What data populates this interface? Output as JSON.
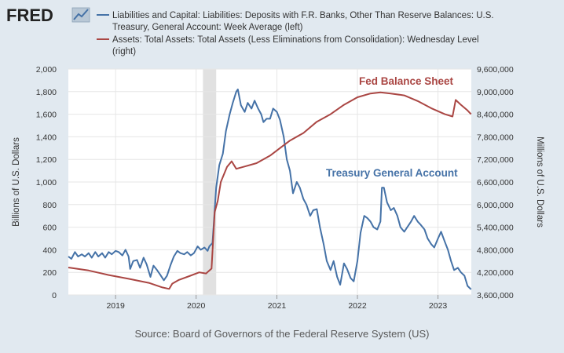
{
  "logo": {
    "text": "FRED"
  },
  "legend": {
    "series1_lines": [
      "Liabilities and Capital: Liabilities: Deposits with F.R. Banks, Other Than Reserve Balances: U.S.",
      "Treasury, General Account: Week Average (left)"
    ],
    "series2_lines": [
      "Assets: Total Assets: Total Assets (Less Eliminations from Consolidation): Wednesday Level",
      "(right)"
    ]
  },
  "source": "Source: Board of Governors of the Federal Reserve System (US)",
  "colors": {
    "tga": "#4572a7",
    "balance": "#aa4643",
    "recession": "#e1e1e1",
    "background": "#e1e9f0"
  },
  "chart_data": {
    "type": "line",
    "title": "",
    "x_ticks": [
      "2019",
      "2020",
      "2021",
      "2022",
      "2023"
    ],
    "xlim": [
      "2018-06",
      "2023-06"
    ],
    "ylabel_left": "Billions of U.S. Dollars",
    "ylabel_right": "Millions of U.S. Dollars",
    "ylim_left": [
      0,
      2000
    ],
    "ylim_right": [
      3600000,
      9600000
    ],
    "y_ticks_left": [
      "0",
      "200",
      "400",
      "600",
      "800",
      "1,000",
      "1,200",
      "1,400",
      "1,600",
      "1,800",
      "2,000"
    ],
    "y_ticks_right": [
      "3,600,000",
      "4,200,000",
      "4,800,000",
      "5,400,000",
      "6,000,000",
      "6,600,000",
      "7,200,000",
      "7,800,000",
      "8,400,000",
      "9,000,000",
      "9,600,000"
    ],
    "recession": [
      "2020-02",
      "2020-04"
    ],
    "annotations": [
      {
        "text": "Fed Balance Sheet",
        "series": "balance"
      },
      {
        "text": "Treasury General Account",
        "series": "tga"
      }
    ],
    "series": [
      {
        "name": "Liabilities and Capital: Liabilities: Deposits with F.R. Banks, Other Than Reserve Balances: U.S. Treasury, General Account: Week Average (left)",
        "key": "tga",
        "axis": "left",
        "points": [
          [
            "2018-06-01",
            340
          ],
          [
            "2018-06-15",
            320
          ],
          [
            "2018-07-01",
            380
          ],
          [
            "2018-07-15",
            340
          ],
          [
            "2018-08-01",
            360
          ],
          [
            "2018-08-15",
            340
          ],
          [
            "2018-09-01",
            370
          ],
          [
            "2018-09-15",
            330
          ],
          [
            "2018-10-01",
            380
          ],
          [
            "2018-10-15",
            340
          ],
          [
            "2018-11-01",
            370
          ],
          [
            "2018-11-15",
            330
          ],
          [
            "2018-12-01",
            380
          ],
          [
            "2018-12-15",
            360
          ],
          [
            "2019-01-01",
            390
          ],
          [
            "2019-01-15",
            380
          ],
          [
            "2019-02-01",
            350
          ],
          [
            "2019-02-15",
            400
          ],
          [
            "2019-03-01",
            340
          ],
          [
            "2019-03-08",
            230
          ],
          [
            "2019-03-22",
            300
          ],
          [
            "2019-04-08",
            310
          ],
          [
            "2019-04-22",
            240
          ],
          [
            "2019-05-08",
            330
          ],
          [
            "2019-05-22",
            270
          ],
          [
            "2019-06-08",
            160
          ],
          [
            "2019-06-22",
            260
          ],
          [
            "2019-07-08",
            220
          ],
          [
            "2019-07-22",
            180
          ],
          [
            "2019-08-08",
            130
          ],
          [
            "2019-08-22",
            170
          ],
          [
            "2019-09-08",
            270
          ],
          [
            "2019-09-22",
            340
          ],
          [
            "2019-10-08",
            390
          ],
          [
            "2019-10-22",
            370
          ],
          [
            "2019-11-08",
            360
          ],
          [
            "2019-11-22",
            380
          ],
          [
            "2019-12-08",
            350
          ],
          [
            "2019-12-22",
            370
          ],
          [
            "2020-01-08",
            430
          ],
          [
            "2020-01-22",
            400
          ],
          [
            "2020-02-08",
            420
          ],
          [
            "2020-02-22",
            390
          ],
          [
            "2020-03-01",
            430
          ],
          [
            "2020-03-15",
            460
          ],
          [
            "2020-04-01",
            950
          ],
          [
            "2020-04-08",
            1050
          ],
          [
            "2020-04-15",
            1150
          ],
          [
            "2020-05-01",
            1250
          ],
          [
            "2020-05-15",
            1450
          ],
          [
            "2020-06-01",
            1600
          ],
          [
            "2020-06-15",
            1700
          ],
          [
            "2020-07-01",
            1800
          ],
          [
            "2020-07-08",
            1820
          ],
          [
            "2020-07-22",
            1680
          ],
          [
            "2020-08-08",
            1620
          ],
          [
            "2020-08-22",
            1700
          ],
          [
            "2020-09-08",
            1650
          ],
          [
            "2020-09-22",
            1720
          ],
          [
            "2020-10-08",
            1650
          ],
          [
            "2020-10-22",
            1600
          ],
          [
            "2020-11-01",
            1530
          ],
          [
            "2020-11-15",
            1560
          ],
          [
            "2020-12-01",
            1560
          ],
          [
            "2020-12-15",
            1650
          ],
          [
            "2021-01-01",
            1620
          ],
          [
            "2021-01-15",
            1550
          ],
          [
            "2021-02-01",
            1400
          ],
          [
            "2021-02-15",
            1200
          ],
          [
            "2021-03-01",
            1100
          ],
          [
            "2021-03-15",
            900
          ],
          [
            "2021-04-01",
            1000
          ],
          [
            "2021-04-15",
            950
          ],
          [
            "2021-05-01",
            850
          ],
          [
            "2021-05-15",
            800
          ],
          [
            "2021-06-01",
            700
          ],
          [
            "2021-06-15",
            750
          ],
          [
            "2021-07-01",
            760
          ],
          [
            "2021-07-15",
            600
          ],
          [
            "2021-08-01",
            450
          ],
          [
            "2021-08-15",
            300
          ],
          [
            "2021-09-01",
            220
          ],
          [
            "2021-09-15",
            300
          ],
          [
            "2021-10-01",
            160
          ],
          [
            "2021-10-15",
            90
          ],
          [
            "2021-11-01",
            280
          ],
          [
            "2021-11-15",
            230
          ],
          [
            "2021-12-01",
            150
          ],
          [
            "2021-12-15",
            120
          ],
          [
            "2022-01-01",
            300
          ],
          [
            "2022-01-15",
            550
          ],
          [
            "2022-02-01",
            700
          ],
          [
            "2022-02-15",
            680
          ],
          [
            "2022-03-01",
            650
          ],
          [
            "2022-03-15",
            600
          ],
          [
            "2022-04-01",
            580
          ],
          [
            "2022-04-15",
            650
          ],
          [
            "2022-04-22",
            950
          ],
          [
            "2022-05-01",
            950
          ],
          [
            "2022-05-15",
            820
          ],
          [
            "2022-06-01",
            750
          ],
          [
            "2022-06-15",
            770
          ],
          [
            "2022-07-01",
            700
          ],
          [
            "2022-07-15",
            600
          ],
          [
            "2022-08-01",
            560
          ],
          [
            "2022-08-15",
            600
          ],
          [
            "2022-09-01",
            650
          ],
          [
            "2022-09-15",
            700
          ],
          [
            "2022-10-01",
            650
          ],
          [
            "2022-10-15",
            620
          ],
          [
            "2022-11-01",
            580
          ],
          [
            "2022-11-15",
            500
          ],
          [
            "2022-12-01",
            450
          ],
          [
            "2022-12-15",
            420
          ],
          [
            "2023-01-01",
            500
          ],
          [
            "2023-01-15",
            560
          ],
          [
            "2023-02-01",
            470
          ],
          [
            "2023-02-15",
            400
          ],
          [
            "2023-03-01",
            300
          ],
          [
            "2023-03-15",
            220
          ],
          [
            "2023-04-01",
            240
          ],
          [
            "2023-04-15",
            200
          ],
          [
            "2023-05-01",
            170
          ],
          [
            "2023-05-15",
            80
          ],
          [
            "2023-05-31",
            49
          ]
        ]
      },
      {
        "name": "Assets: Total Assets: Total Assets (Less Eliminations from Consolidation): Wednesday Level (right)",
        "key": "balance",
        "axis": "right",
        "points": [
          [
            "2018-06-01",
            4330000
          ],
          [
            "2018-09-01",
            4250000
          ],
          [
            "2018-12-01",
            4130000
          ],
          [
            "2019-03-01",
            4030000
          ],
          [
            "2019-06-01",
            3920000
          ],
          [
            "2019-08-01",
            3800000
          ],
          [
            "2019-09-01",
            3760000
          ],
          [
            "2019-09-15",
            3900000
          ],
          [
            "2019-10-15",
            4000000
          ],
          [
            "2019-12-01",
            4100000
          ],
          [
            "2020-01-15",
            4200000
          ],
          [
            "2020-02-15",
            4170000
          ],
          [
            "2020-03-11",
            4300000
          ],
          [
            "2020-03-25",
            5800000
          ],
          [
            "2020-04-08",
            6100000
          ],
          [
            "2020-04-22",
            6600000
          ],
          [
            "2020-05-20",
            7000000
          ],
          [
            "2020-06-10",
            7150000
          ],
          [
            "2020-07-01",
            6950000
          ],
          [
            "2020-08-01",
            7000000
          ],
          [
            "2020-10-01",
            7100000
          ],
          [
            "2020-12-01",
            7300000
          ],
          [
            "2021-01-15",
            7500000
          ],
          [
            "2021-03-01",
            7700000
          ],
          [
            "2021-05-01",
            7900000
          ],
          [
            "2021-07-01",
            8200000
          ],
          [
            "2021-09-01",
            8400000
          ],
          [
            "2021-11-01",
            8650000
          ],
          [
            "2022-01-01",
            8850000
          ],
          [
            "2022-03-01",
            8950000
          ],
          [
            "2022-04-15",
            8980000
          ],
          [
            "2022-06-01",
            8950000
          ],
          [
            "2022-08-01",
            8900000
          ],
          [
            "2022-10-01",
            8750000
          ],
          [
            "2022-12-01",
            8560000
          ],
          [
            "2023-02-01",
            8400000
          ],
          [
            "2023-03-08",
            8340000
          ],
          [
            "2023-03-22",
            8780000
          ],
          [
            "2023-04-15",
            8650000
          ],
          [
            "2023-05-15",
            8500000
          ],
          [
            "2023-05-31",
            8400000
          ]
        ]
      }
    ]
  }
}
